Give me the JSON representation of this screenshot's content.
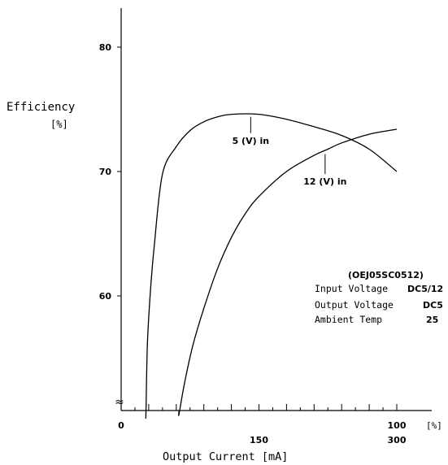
{
  "chart_data": {
    "type": "line",
    "ylabel": "Efficiency",
    "yunit": "[%]",
    "xlabel": "Output Current [mA]",
    "xunit_pct": "[%]",
    "ylim": [
      50,
      84
    ],
    "xlim_pct": [
      0,
      100
    ],
    "y_ticks": [
      60,
      70,
      80
    ],
    "x_pct_ticks": [
      {
        "value": 0,
        "label": "0"
      },
      {
        "value": 100,
        "label": "100"
      }
    ],
    "x_ma_ticks": [
      {
        "pct": 50,
        "label": "150"
      },
      {
        "pct": 100,
        "label": "300"
      }
    ],
    "axis_break_symbol": "≈",
    "series": [
      {
        "name": "5 (V) in",
        "x": [
          9,
          9.5,
          10.5,
          12,
          15,
          20,
          25,
          30,
          35,
          40,
          50,
          60,
          70,
          80,
          90,
          100
        ],
        "y": [
          50.5,
          56,
          60,
          64,
          69.8,
          72,
          73.3,
          74.0,
          74.4,
          74.6,
          74.6,
          74.2,
          73.6,
          72.9,
          71.8,
          70.0
        ]
      },
      {
        "name": "12 (V) in",
        "x": [
          21,
          23,
          26,
          30,
          35,
          40,
          45,
          50,
          60,
          70,
          75,
          80,
          90,
          100
        ],
        "y": [
          50.5,
          53,
          56,
          59,
          62.2,
          64.7,
          66.6,
          68.0,
          70.0,
          71.3,
          71.8,
          72.3,
          73.0,
          73.4
        ]
      }
    ],
    "annotations": [
      {
        "text": "5 (V) in",
        "x": 47,
        "y": 74.4,
        "line_to_y": 73.1,
        "label_y": 72.5
      },
      {
        "text": "12 (V) in",
        "x": 74,
        "y": 71.4,
        "line_to_y": 69.8,
        "label_y": 69.2
      }
    ],
    "info_box": {
      "model": "(OEJ05SC0512)",
      "rows": [
        {
          "label": "Input Voltage",
          "value": "DC5/12"
        },
        {
          "label": "Output Voltage",
          "value": "DC5"
        },
        {
          "label": "Ambient Temp",
          "value": "25"
        }
      ]
    }
  }
}
